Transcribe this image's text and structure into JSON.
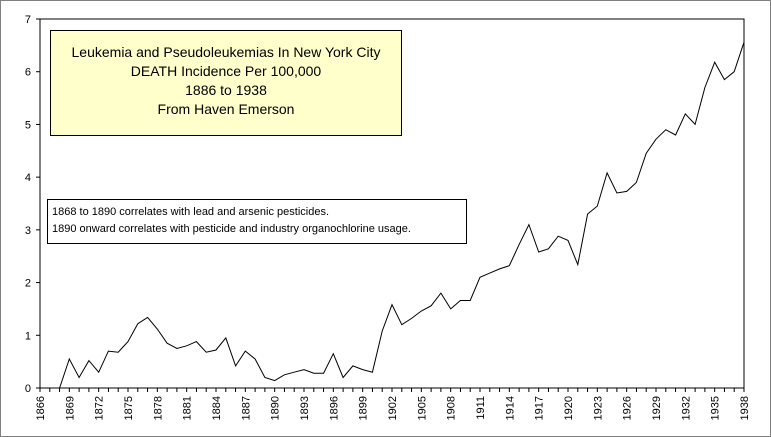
{
  "chart_data": {
    "type": "line",
    "title_lines": [
      "Leukemia and Pseudoleukemias In New York City",
      "DEATH Incidence Per 100,000",
      "1886 to 1938",
      "From Haven Emerson"
    ],
    "annotation_lines": [
      "1868 to 1890 correlates with lead and arsenic pesticides.",
      "1890 onward correlates with pesticide and industry organochlorine usage."
    ],
    "xlabel": "",
    "ylabel": "",
    "xlim": [
      1866,
      1938
    ],
    "ylim": [
      0,
      7
    ],
    "x_ticks": [
      1866,
      1869,
      1872,
      1875,
      1878,
      1881,
      1884,
      1887,
      1890,
      1893,
      1896,
      1899,
      1902,
      1905,
      1908,
      1911,
      1914,
      1917,
      1920,
      1923,
      1926,
      1929,
      1932,
      1935,
      1938
    ],
    "y_ticks": [
      0,
      1,
      2,
      3,
      4,
      5,
      6,
      7
    ],
    "grid": false,
    "series": [
      {
        "color": "#000000",
        "x": [
          1868,
          1869,
          1870,
          1871,
          1872,
          1873,
          1874,
          1875,
          1876,
          1877,
          1878,
          1879,
          1880,
          1881,
          1882,
          1883,
          1884,
          1885,
          1886,
          1887,
          1888,
          1889,
          1890,
          1891,
          1892,
          1893,
          1894,
          1895,
          1896,
          1897,
          1898,
          1899,
          1900,
          1901,
          1902,
          1903,
          1904,
          1905,
          1906,
          1907,
          1908,
          1909,
          1910,
          1911,
          1912,
          1913,
          1914,
          1915,
          1916,
          1917,
          1918,
          1919,
          1920,
          1921,
          1922,
          1923,
          1924,
          1925,
          1926,
          1927,
          1928,
          1929,
          1930,
          1931,
          1932,
          1933,
          1934,
          1935,
          1936,
          1937,
          1938
        ],
        "y": [
          0.0,
          0.55,
          0.2,
          0.52,
          0.3,
          0.7,
          0.68,
          0.88,
          1.22,
          1.34,
          1.12,
          0.85,
          0.75,
          0.8,
          0.88,
          0.68,
          0.72,
          0.95,
          0.42,
          0.7,
          0.55,
          0.2,
          0.14,
          0.25,
          0.3,
          0.35,
          0.28,
          0.28,
          0.65,
          0.2,
          0.42,
          0.35,
          0.3,
          1.08,
          1.58,
          1.2,
          1.32,
          1.46,
          1.56,
          1.8,
          1.5,
          1.66,
          1.66,
          2.1,
          2.18,
          2.26,
          2.32,
          2.72,
          3.1,
          2.58,
          2.64,
          2.88,
          2.8,
          2.34,
          3.3,
          3.45,
          4.08,
          3.7,
          3.73,
          3.9,
          4.45,
          4.72,
          4.9,
          4.8,
          5.2,
          5.0,
          5.7,
          6.18,
          5.85,
          6.0,
          6.56
        ]
      }
    ]
  }
}
